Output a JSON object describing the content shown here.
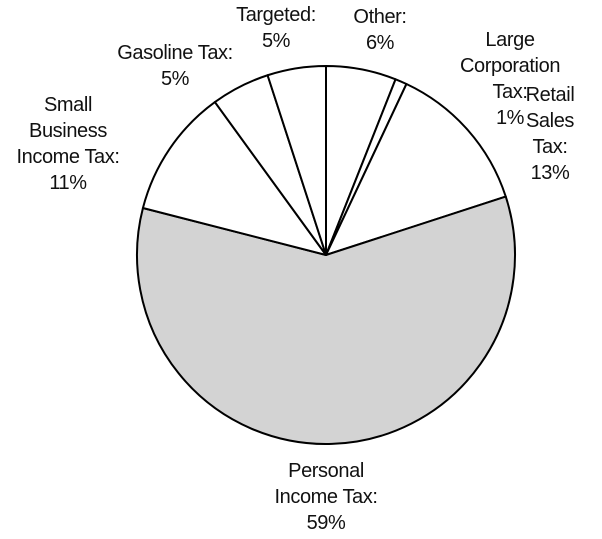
{
  "chart_data": {
    "type": "pie",
    "categories": [
      "Other:",
      "Large\nCorporation Tax:",
      "Retail\nSales Tax:",
      "Personal\nIncome Tax:",
      "Small\nBusiness\nIncome Tax:",
      "Gasoline Tax:",
      "Targeted:"
    ],
    "values": [
      6,
      1,
      13,
      59,
      11,
      5,
      5
    ],
    "value_labels": [
      "6%",
      "1%",
      "13%",
      "59%",
      "11%",
      "5%",
      "5%"
    ],
    "colors": [
      "#ffffff",
      "#ffffff",
      "#ffffff",
      "#d3d3d3",
      "#ffffff",
      "#ffffff",
      "#ffffff"
    ]
  }
}
